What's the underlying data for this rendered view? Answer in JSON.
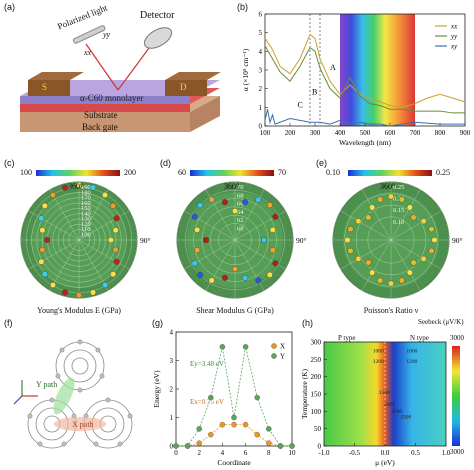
{
  "panels": {
    "a": {
      "label": "(a)",
      "polarized": "Polarized light",
      "detector": "Detector",
      "xx": "xx",
      "yy": "yy",
      "source": "S",
      "drain": "D",
      "monolayer": "α-C60 monolayer",
      "substrate": "Substrate",
      "gate": "Back gate"
    },
    "b": {
      "label": "(b)"
    },
    "c": {
      "label": "(c)",
      "cmin": "100",
      "cmax": "200",
      "angle": "360°",
      "angle90": "90°",
      "caption": "Young's Modulus E (GPa)",
      "ticks": [
        "190",
        "180",
        "170",
        "160",
        "150",
        "140",
        "130",
        "120",
        "110",
        "100"
      ]
    },
    "d": {
      "label": "(d)",
      "cmin": "60",
      "cmax": "70",
      "angle": "360°",
      "angle90": "90°",
      "caption": "Shear Modulus G (GPa)",
      "ticks": [
        "70",
        "68",
        "66",
        "64",
        "62",
        "60"
      ]
    },
    "e": {
      "label": "(e)",
      "cmin": "0.10",
      "cmax": "0.25",
      "angle": "360°",
      "angle90": "90°",
      "caption": "Poisson's Ratio ν",
      "ticks": [
        "0.25",
        "0.20",
        "0.15",
        "0.10"
      ]
    },
    "f": {
      "label": "(f)",
      "ypath": "Y path",
      "xpath": "X path"
    },
    "g": {
      "label": "(g)",
      "ey": "Ey=3.48 eV",
      "ex": "Ex=0.75 eV"
    },
    "h": {
      "label": "(h)",
      "seebeck": "Seebeck (μV/K)",
      "ptype": "P type",
      "ntype": "N type",
      "cmax": "3000",
      "cmin": "3000",
      "contours": [
        "1000",
        "1200",
        "1000",
        "1200",
        "1500",
        "2000",
        "2500",
        "2500"
      ]
    }
  },
  "chart_data": [
    {
      "type": "line",
      "panel": "b",
      "xlabel": "Wavelength (nm)",
      "ylabel": "α (×10⁵ cm⁻¹)",
      "xlim": [
        100,
        900
      ],
      "ylim": [
        0,
        6
      ],
      "xticks": [
        "100",
        "200",
        "300",
        "400",
        "500",
        "600",
        "700",
        "800",
        "900"
      ],
      "yticks": [
        "0",
        "1",
        "2",
        "3",
        "4",
        "5",
        "6"
      ],
      "region_labels": [
        "A",
        "B",
        "C"
      ],
      "series": [
        {
          "name": "xx",
          "color": "#c8a032",
          "x": [
            100,
            130,
            160,
            200,
            240,
            280,
            300,
            320,
            360,
            400,
            440,
            480,
            520,
            560,
            600,
            650,
            700,
            750,
            800,
            850,
            900
          ],
          "y": [
            4.7,
            4.1,
            3.2,
            2.8,
            3.6,
            4.9,
            4.7,
            3.6,
            2.4,
            1.7,
            2.2,
            1.7,
            1.5,
            1.3,
            1.1,
            1.0,
            1.2,
            1.5,
            1.7,
            1.5,
            1.3
          ]
        },
        {
          "name": "yy",
          "color": "#6a8a3a",
          "x": [
            100,
            130,
            160,
            200,
            240,
            280,
            300,
            320,
            360,
            400,
            440,
            480,
            520,
            560,
            600,
            650,
            700,
            750,
            800,
            850,
            900
          ],
          "y": [
            4.3,
            3.6,
            2.9,
            2.4,
            3.2,
            4.2,
            4.0,
            3.1,
            2.0,
            1.5,
            2.6,
            1.6,
            1.2,
            1.1,
            0.9,
            0.9,
            0.8,
            0.8,
            0.8,
            0.7,
            0.7
          ]
        },
        {
          "name": "xy",
          "color": "#3b6fb0",
          "x": [
            100,
            110,
            120,
            130,
            140,
            160,
            200,
            240,
            280,
            320,
            360,
            400,
            440,
            480,
            520,
            560,
            600,
            650,
            700,
            800,
            900
          ],
          "y": [
            0.3,
            0.9,
            0.2,
            0.6,
            0.1,
            0.2,
            0.4,
            0.3,
            0.2,
            0.2,
            0.1,
            0.3,
            0.1,
            0.2,
            0.1,
            0.1,
            0.0,
            0.1,
            0.2,
            0.1,
            0.1
          ]
        }
      ]
    },
    {
      "type": "scatter",
      "panel": "g",
      "xlabel": "Coordinate",
      "ylabel": "Energy (eV)",
      "xlim": [
        0,
        10
      ],
      "ylim": [
        0,
        4
      ],
      "xticks": [
        "0",
        "2",
        "4",
        "6",
        "8",
        "10"
      ],
      "yticks": [
        "0",
        "1",
        "2",
        "3",
        "4"
      ],
      "series": [
        {
          "name": "X",
          "color": "#e8962a",
          "x": [
            0,
            1,
            2,
            3,
            4,
            5,
            6,
            7,
            8,
            9,
            10
          ],
          "y": [
            0.0,
            0.0,
            0.1,
            0.4,
            0.75,
            0.75,
            0.75,
            0.4,
            0.1,
            0.0,
            0.0
          ]
        },
        {
          "name": "Y",
          "color": "#5aa55a",
          "x": [
            0,
            1,
            2,
            3,
            4,
            5,
            6,
            7,
            8,
            9,
            10
          ],
          "y": [
            0.0,
            0.0,
            0.6,
            1.7,
            3.48,
            1.0,
            3.48,
            1.7,
            0.6,
            0.0,
            0.0
          ]
        }
      ]
    },
    {
      "type": "heatmap",
      "panel": "h",
      "xlabel": "μ (eV)",
      "ylabel": "Temperature (K)",
      "xlim": [
        -1.0,
        1.0
      ],
      "ylim": [
        0,
        300
      ],
      "xticks": [
        "-1.0",
        "-0.5",
        "0.0",
        "0.5",
        "1.0"
      ],
      "yticks": [
        "0",
        "50",
        "100",
        "150",
        "200",
        "250",
        "300"
      ]
    }
  ]
}
